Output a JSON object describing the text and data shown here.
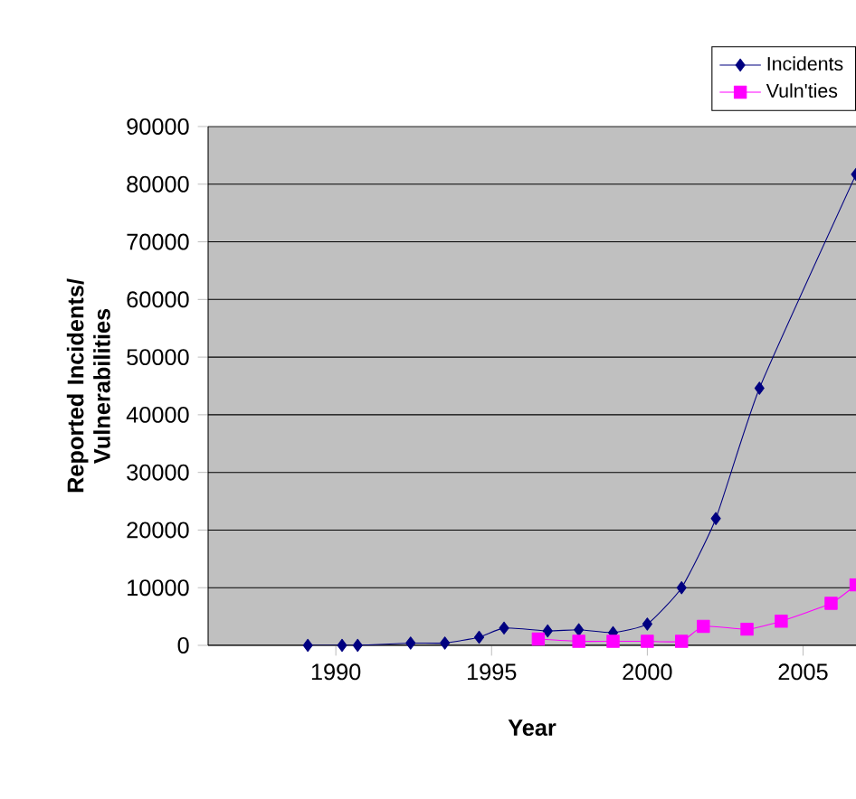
{
  "chart_data": {
    "type": "line",
    "xlabel": "Year",
    "ylabel": "Reported Incidents/ Vulnerabilities",
    "xlim": [
      1985.9,
      2006.7
    ],
    "xticks": [
      1990,
      1995,
      2000,
      2005
    ],
    "ylim": [
      0,
      90000
    ],
    "yticks": [
      0,
      10000,
      20000,
      30000,
      40000,
      50000,
      60000,
      70000,
      80000,
      90000
    ],
    "grid": "y",
    "legend": "top right",
    "line_style": "solid",
    "series": [
      {
        "name": "Incidents",
        "color": "#000080",
        "marker": "diamond",
        "x": [
          1989.1,
          1990.2,
          1990.7,
          1992.4,
          1993.5,
          1994.6,
          1995.4,
          1996.8,
          1997.8,
          1998.9,
          2000.0,
          2001.1,
          2002.2,
          2003.6,
          2006.7
        ],
        "values": [
          0,
          0,
          0,
          400,
          400,
          1400,
          3000,
          2500,
          2700,
          2200,
          3700,
          10000,
          22000,
          44600,
          81700
        ]
      },
      {
        "name": "Vuln'ties",
        "color": "#ff00ff",
        "marker": "square",
        "x": [
          1996.5,
          1997.8,
          1998.9,
          2000.0,
          2001.1,
          2001.8,
          2003.2,
          2004.3,
          2005.9,
          2006.7
        ],
        "values": [
          1100,
          700,
          700,
          700,
          700,
          3300,
          2800,
          4200,
          7300,
          10500
        ]
      }
    ]
  }
}
